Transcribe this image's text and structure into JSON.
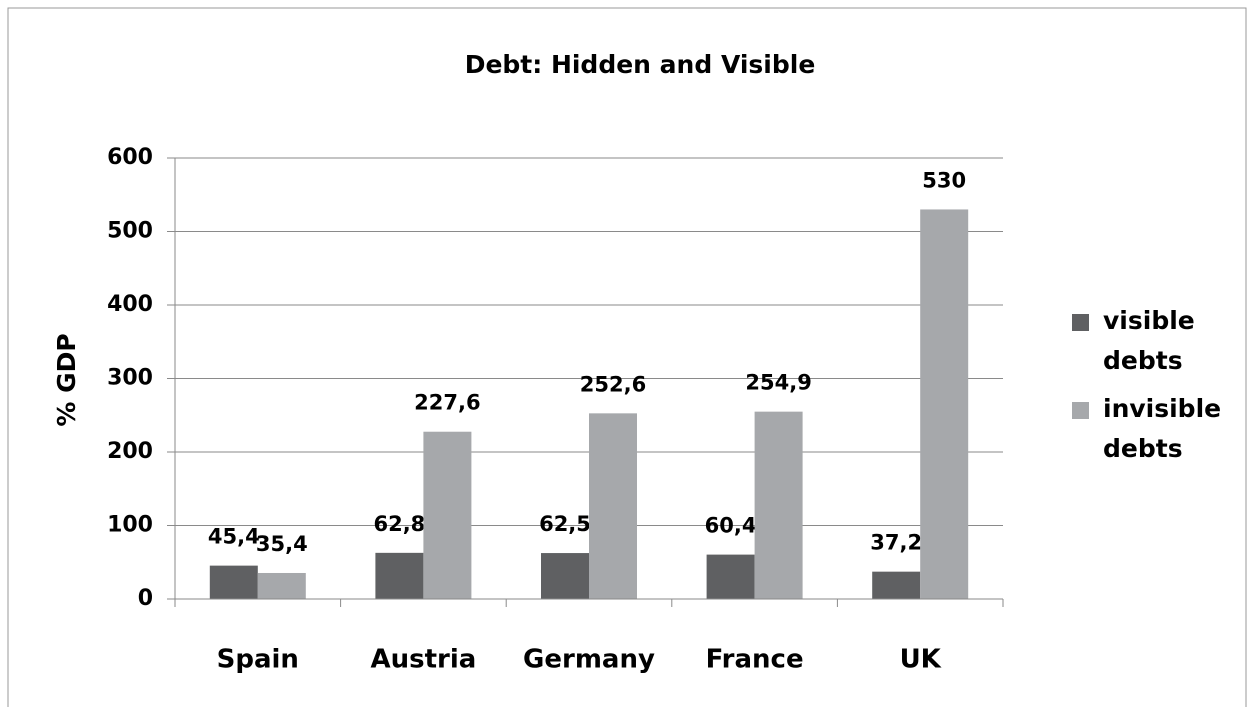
{
  "chart_data": {
    "type": "bar",
    "title": "Debt: Hidden and Visible",
    "y_label": "% GDP",
    "categories": [
      "Spain",
      "Austria",
      "Germany",
      "France",
      "UK"
    ],
    "series": [
      {
        "name": "visible debts",
        "color": "#5f6062",
        "values": [
          45.4,
          62.8,
          62.5,
          60.4,
          37.2
        ],
        "value_labels": [
          "45,4",
          "62,8",
          "62,5",
          "60,4",
          "37,2"
        ]
      },
      {
        "name": "invisible debts",
        "color": "#a6a8ab",
        "values": [
          35.4,
          227.6,
          252.6,
          254.9,
          530
        ],
        "value_labels": [
          "35,4",
          "227,6",
          "252,6",
          "254,9",
          "530"
        ]
      }
    ],
    "ylim": [
      0,
      600
    ],
    "yticks": [
      0,
      100,
      200,
      300,
      400,
      500,
      600
    ],
    "grid": true,
    "legend": "right"
  }
}
